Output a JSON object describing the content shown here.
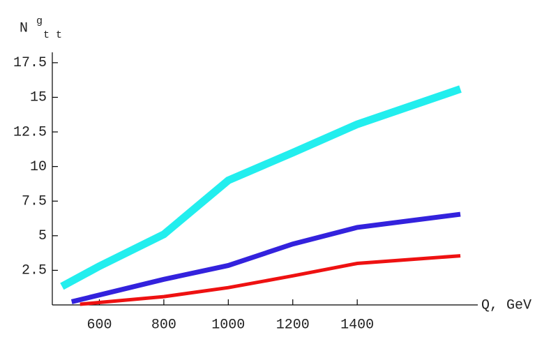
{
  "chart_data": {
    "type": "line",
    "y_label": {
      "base": "N",
      "sup": "g",
      "sub": "t t"
    },
    "x_label": "Q, GeV",
    "xlim": [
      454,
      1774
    ],
    "ylim": [
      0,
      18.25
    ],
    "xticks": [
      600,
      800,
      1000,
      1200,
      1400
    ],
    "yticks": [
      2.5,
      5,
      7.5,
      10,
      12.5,
      15,
      17.5
    ],
    "series": [
      {
        "color": "#22eeee",
        "width": 11,
        "x": [
          484,
          600,
          800,
          1000,
          1200,
          1400,
          1720
        ],
        "values": [
          1.34,
          2.8,
          5.1,
          9.0,
          11.0,
          13.05,
          15.6
        ]
      },
      {
        "color": "#3322dd",
        "width": 7,
        "x": [
          514,
          800,
          1000,
          1200,
          1400,
          1720
        ],
        "values": [
          0.23,
          1.85,
          2.85,
          4.4,
          5.6,
          6.55
        ]
      },
      {
        "color": "#ee1111",
        "width": 5,
        "x": [
          540,
          800,
          1000,
          1200,
          1400,
          1720
        ],
        "values": [
          0.05,
          0.6,
          1.25,
          2.1,
          3.0,
          3.55
        ]
      }
    ]
  }
}
